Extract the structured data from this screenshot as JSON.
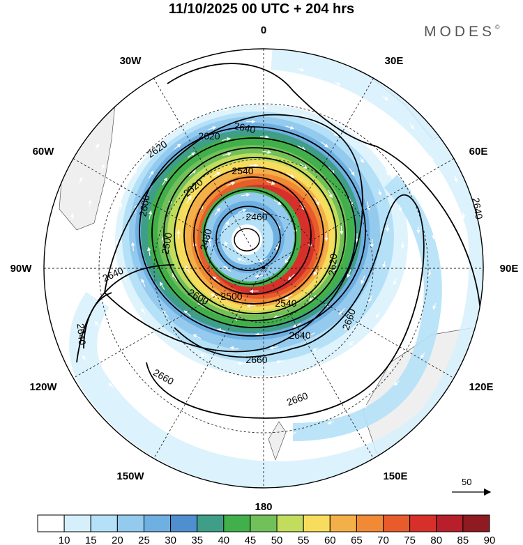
{
  "map": {
    "title": "11/10/2025  00 UTC  + 204 hrs",
    "brand": "MODES",
    "brand_mark": "©",
    "projection": "south-polar-stereographic",
    "meridian_labels": {
      "top": "0",
      "bottom": "180",
      "left": "90W",
      "right": "90E",
      "upper_left_1": "30W",
      "upper_left_2": "60W",
      "upper_right_1": "30E",
      "upper_right_2": "60E",
      "lower_left_1": "120W",
      "lower_left_2": "150W",
      "lower_right_1": "120E",
      "lower_right_2": "150E"
    },
    "contour_labels": {
      "c2460": "2460",
      "c2480": "2480",
      "c2500a": "2500",
      "c2500b": "2500",
      "c2520": "2520",
      "c2540a": "2540",
      "c2540b": "2540",
      "c2600a": "2600",
      "c2600b": "2600",
      "c2620a": "2620",
      "c2620b": "2620",
      "c2620c": "2620",
      "c2640a": "2640",
      "c2640b": "2640",
      "c2640c": "2640",
      "c2640d": "2640",
      "c2640e": "2640",
      "c2660a": "2660",
      "c2660b": "2660",
      "c2660c": "2660",
      "c2660d": "2660"
    },
    "reference_vector": "50"
  },
  "colorbar": {
    "labels": [
      "10",
      "15",
      "20",
      "25",
      "30",
      "35",
      "40",
      "45",
      "50",
      "55",
      "60",
      "65",
      "70",
      "75",
      "80",
      "85",
      "90"
    ],
    "colors": [
      "#ffffff",
      "#d6f0fb",
      "#b4e1f7",
      "#93caee",
      "#6fb0e2",
      "#4f8fcf",
      "#3f9e88",
      "#41b04b",
      "#72c05a",
      "#c2dc5d",
      "#f7dc5d",
      "#f4b048",
      "#f08a35",
      "#e85c2c",
      "#d7302a",
      "#b7202a",
      "#8f1a22"
    ]
  },
  "colors": {
    "land": "#efefef",
    "contour": "#000000",
    "grid": "#222222",
    "vector": "#ffffff"
  }
}
